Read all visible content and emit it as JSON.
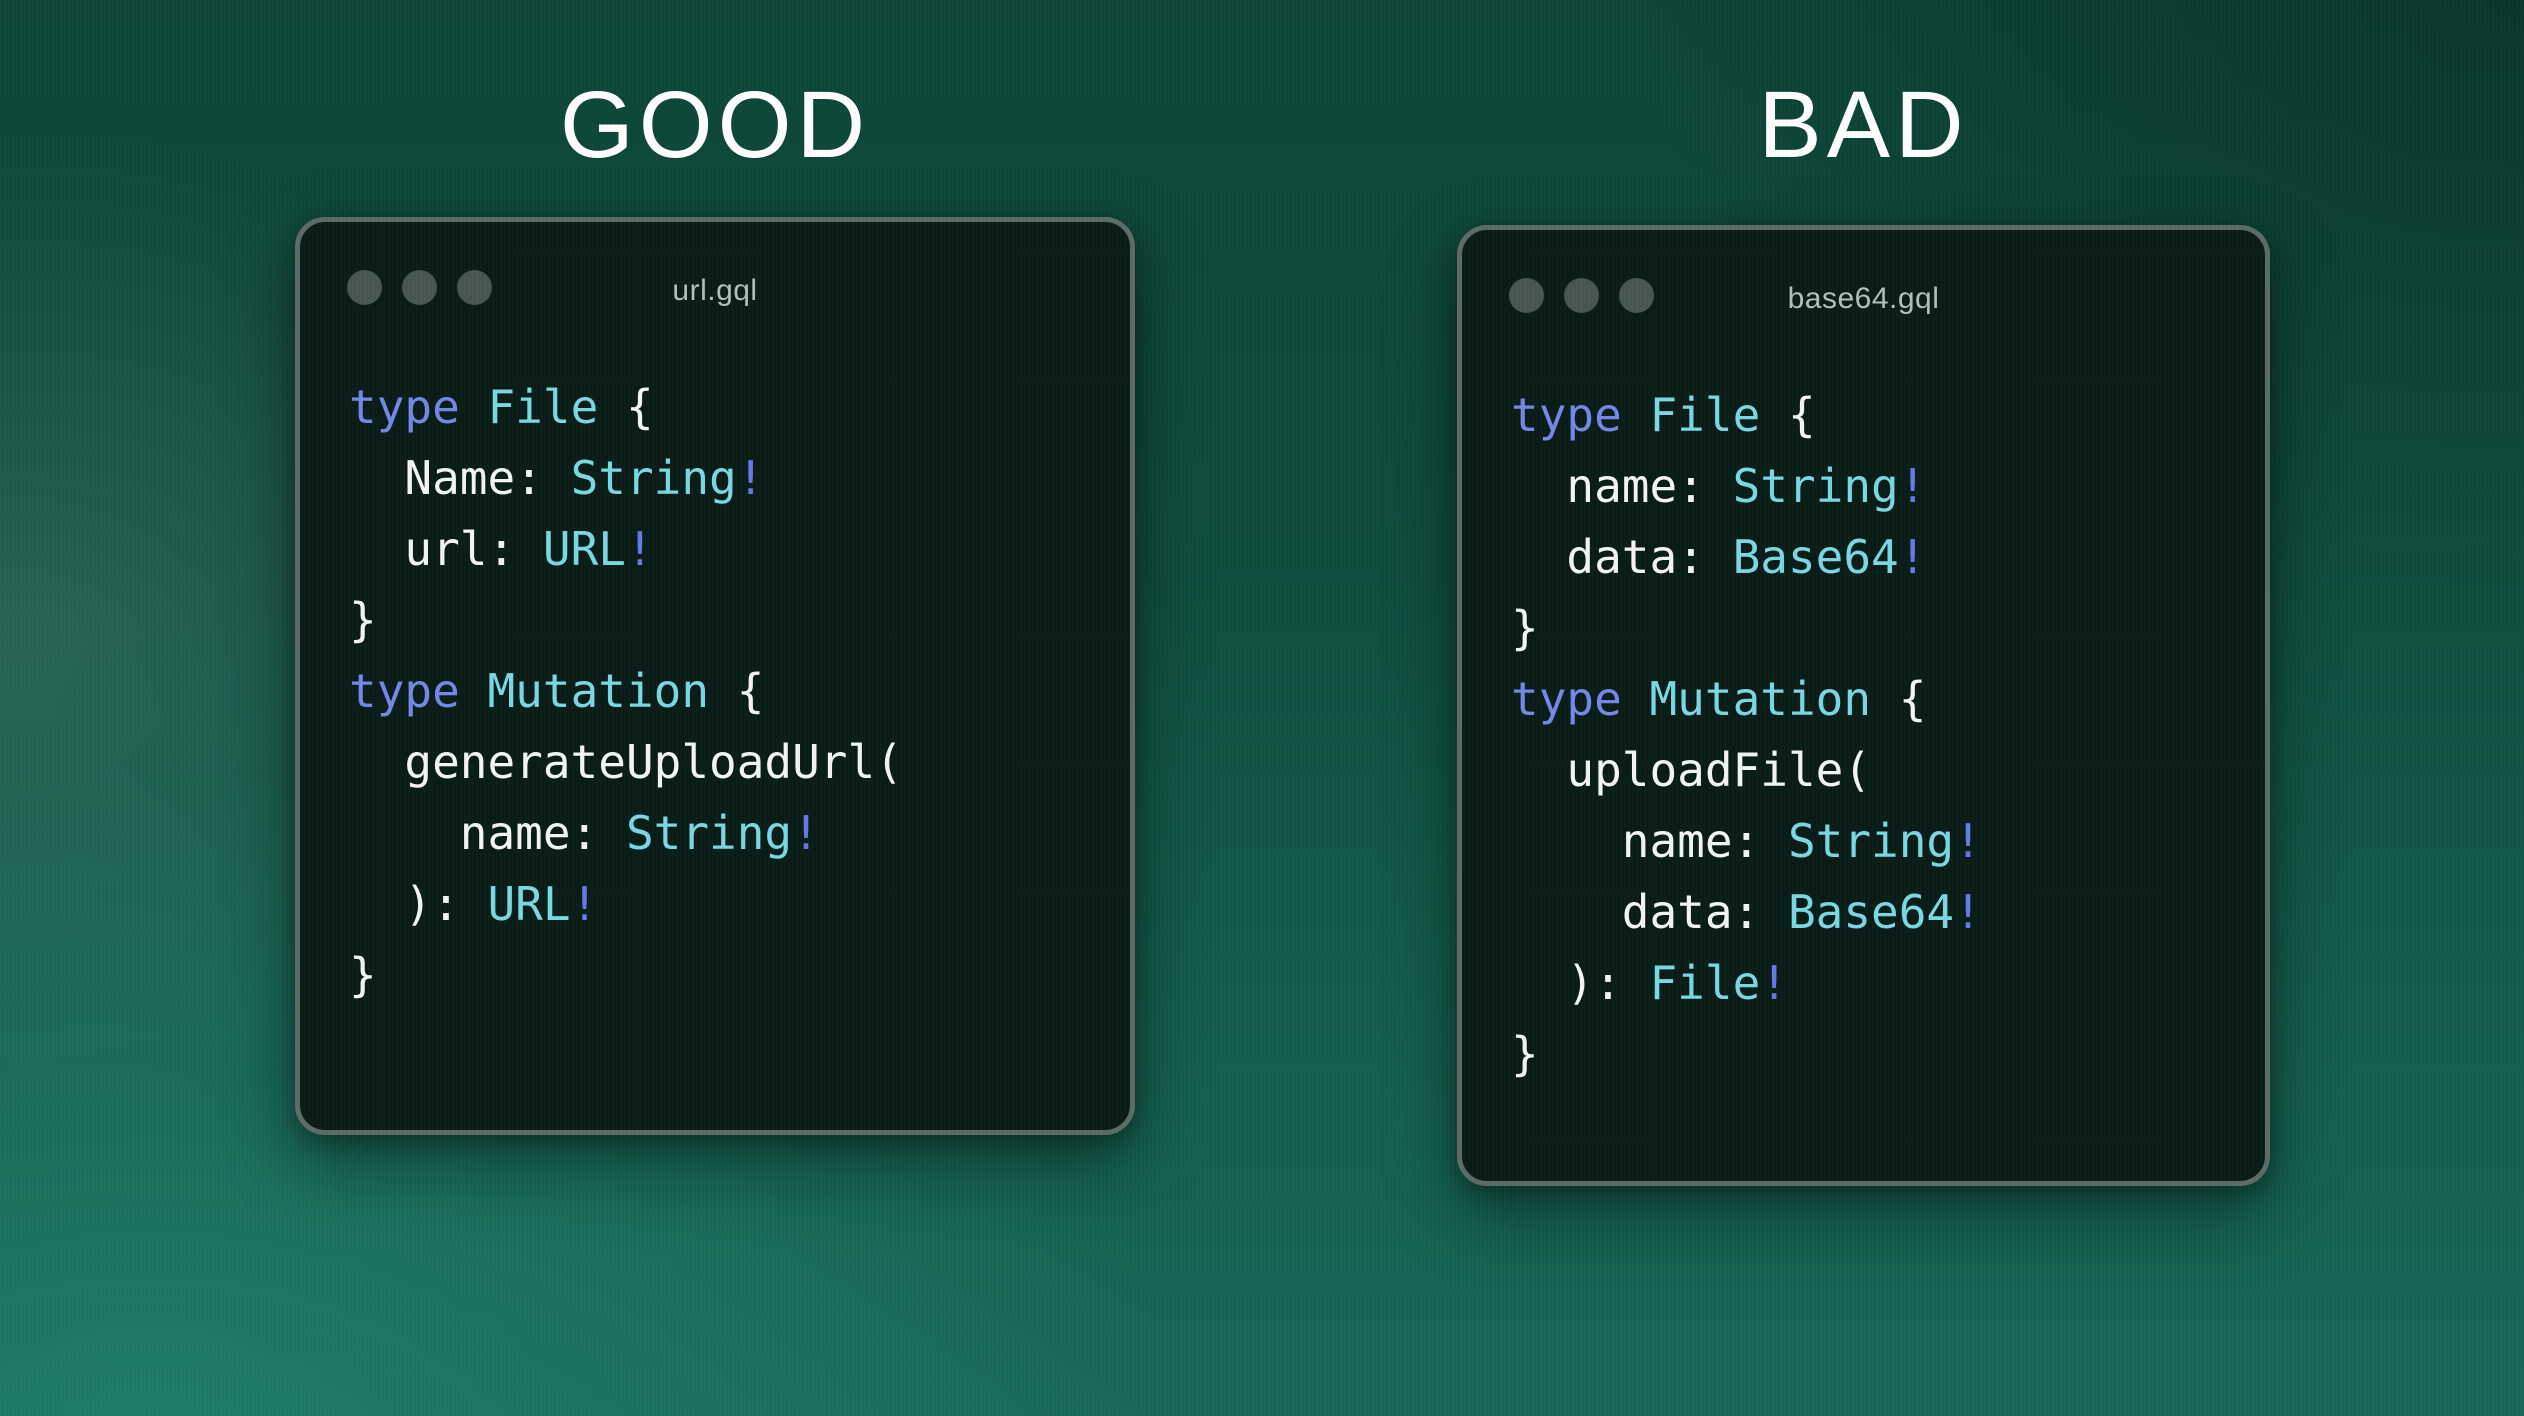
{
  "panels": [
    {
      "verdict": "GOOD",
      "window": {
        "title": "url.gql",
        "traffic_light_count": 3,
        "code_lines": [
          [
            {
              "t": "type",
              "c": "k"
            },
            {
              "t": " ",
              "c": "p"
            },
            {
              "t": "File",
              "c": "t"
            },
            {
              "t": " {",
              "c": "p"
            }
          ],
          [
            {
              "t": "  Name: ",
              "c": "p"
            },
            {
              "t": "String",
              "c": "t"
            },
            {
              "t": "!",
              "c": "b"
            }
          ],
          [
            {
              "t": "  url: ",
              "c": "p"
            },
            {
              "t": "URL",
              "c": "t"
            },
            {
              "t": "!",
              "c": "b"
            }
          ],
          [
            {
              "t": "}",
              "c": "p"
            }
          ],
          [
            {
              "t": "type",
              "c": "k"
            },
            {
              "t": " ",
              "c": "p"
            },
            {
              "t": "Mutation",
              "c": "t"
            },
            {
              "t": " {",
              "c": "p"
            }
          ],
          [
            {
              "t": "  generateUploadUrl(",
              "c": "p"
            }
          ],
          [
            {
              "t": "    name: ",
              "c": "p"
            },
            {
              "t": "String",
              "c": "t"
            },
            {
              "t": "!",
              "c": "b"
            }
          ],
          [
            {
              "t": "  ): ",
              "c": "p"
            },
            {
              "t": "URL",
              "c": "t"
            },
            {
              "t": "!",
              "c": "b"
            }
          ],
          [
            {
              "t": "}",
              "c": "p"
            }
          ]
        ]
      }
    },
    {
      "verdict": "BAD",
      "window": {
        "title": "base64.gql",
        "traffic_light_count": 3,
        "code_lines": [
          [
            {
              "t": "type",
              "c": "k"
            },
            {
              "t": " ",
              "c": "p"
            },
            {
              "t": "File",
              "c": "t"
            },
            {
              "t": " {",
              "c": "p"
            }
          ],
          [
            {
              "t": "  name: ",
              "c": "p"
            },
            {
              "t": "String",
              "c": "t"
            },
            {
              "t": "!",
              "c": "b"
            }
          ],
          [
            {
              "t": "  data: ",
              "c": "p"
            },
            {
              "t": "Base64",
              "c": "t"
            },
            {
              "t": "!",
              "c": "b"
            }
          ],
          [
            {
              "t": "}",
              "c": "p"
            }
          ],
          [
            {
              "t": "type",
              "c": "k"
            },
            {
              "t": " ",
              "c": "p"
            },
            {
              "t": "Mutation",
              "c": "t"
            },
            {
              "t": " {",
              "c": "p"
            }
          ],
          [
            {
              "t": "  uploadFile(",
              "c": "p"
            }
          ],
          [
            {
              "t": "    name: ",
              "c": "p"
            },
            {
              "t": "String",
              "c": "t"
            },
            {
              "t": "!",
              "c": "b"
            }
          ],
          [
            {
              "t": "    data: ",
              "c": "p"
            },
            {
              "t": "Base64",
              "c": "t"
            },
            {
              "t": "!",
              "c": "b"
            }
          ],
          [
            {
              "t": "  ): ",
              "c": "p"
            },
            {
              "t": "File",
              "c": "t"
            },
            {
              "t": "!",
              "c": "b"
            }
          ],
          [
            {
              "t": "}",
              "c": "p"
            }
          ]
        ]
      }
    }
  ],
  "colors": {
    "keyword": "#7488e8",
    "type": "#79d8e2",
    "bang": "#6678e6",
    "plain": "#f2f5f3",
    "window_bg": "#0a1c17",
    "window_border": "#5c6b66",
    "title_text": "#b3bfbb",
    "dot": "#485651",
    "heading_text": "#ffffff",
    "background_top": "#0d4538",
    "background_bottom": "#17685a"
  }
}
